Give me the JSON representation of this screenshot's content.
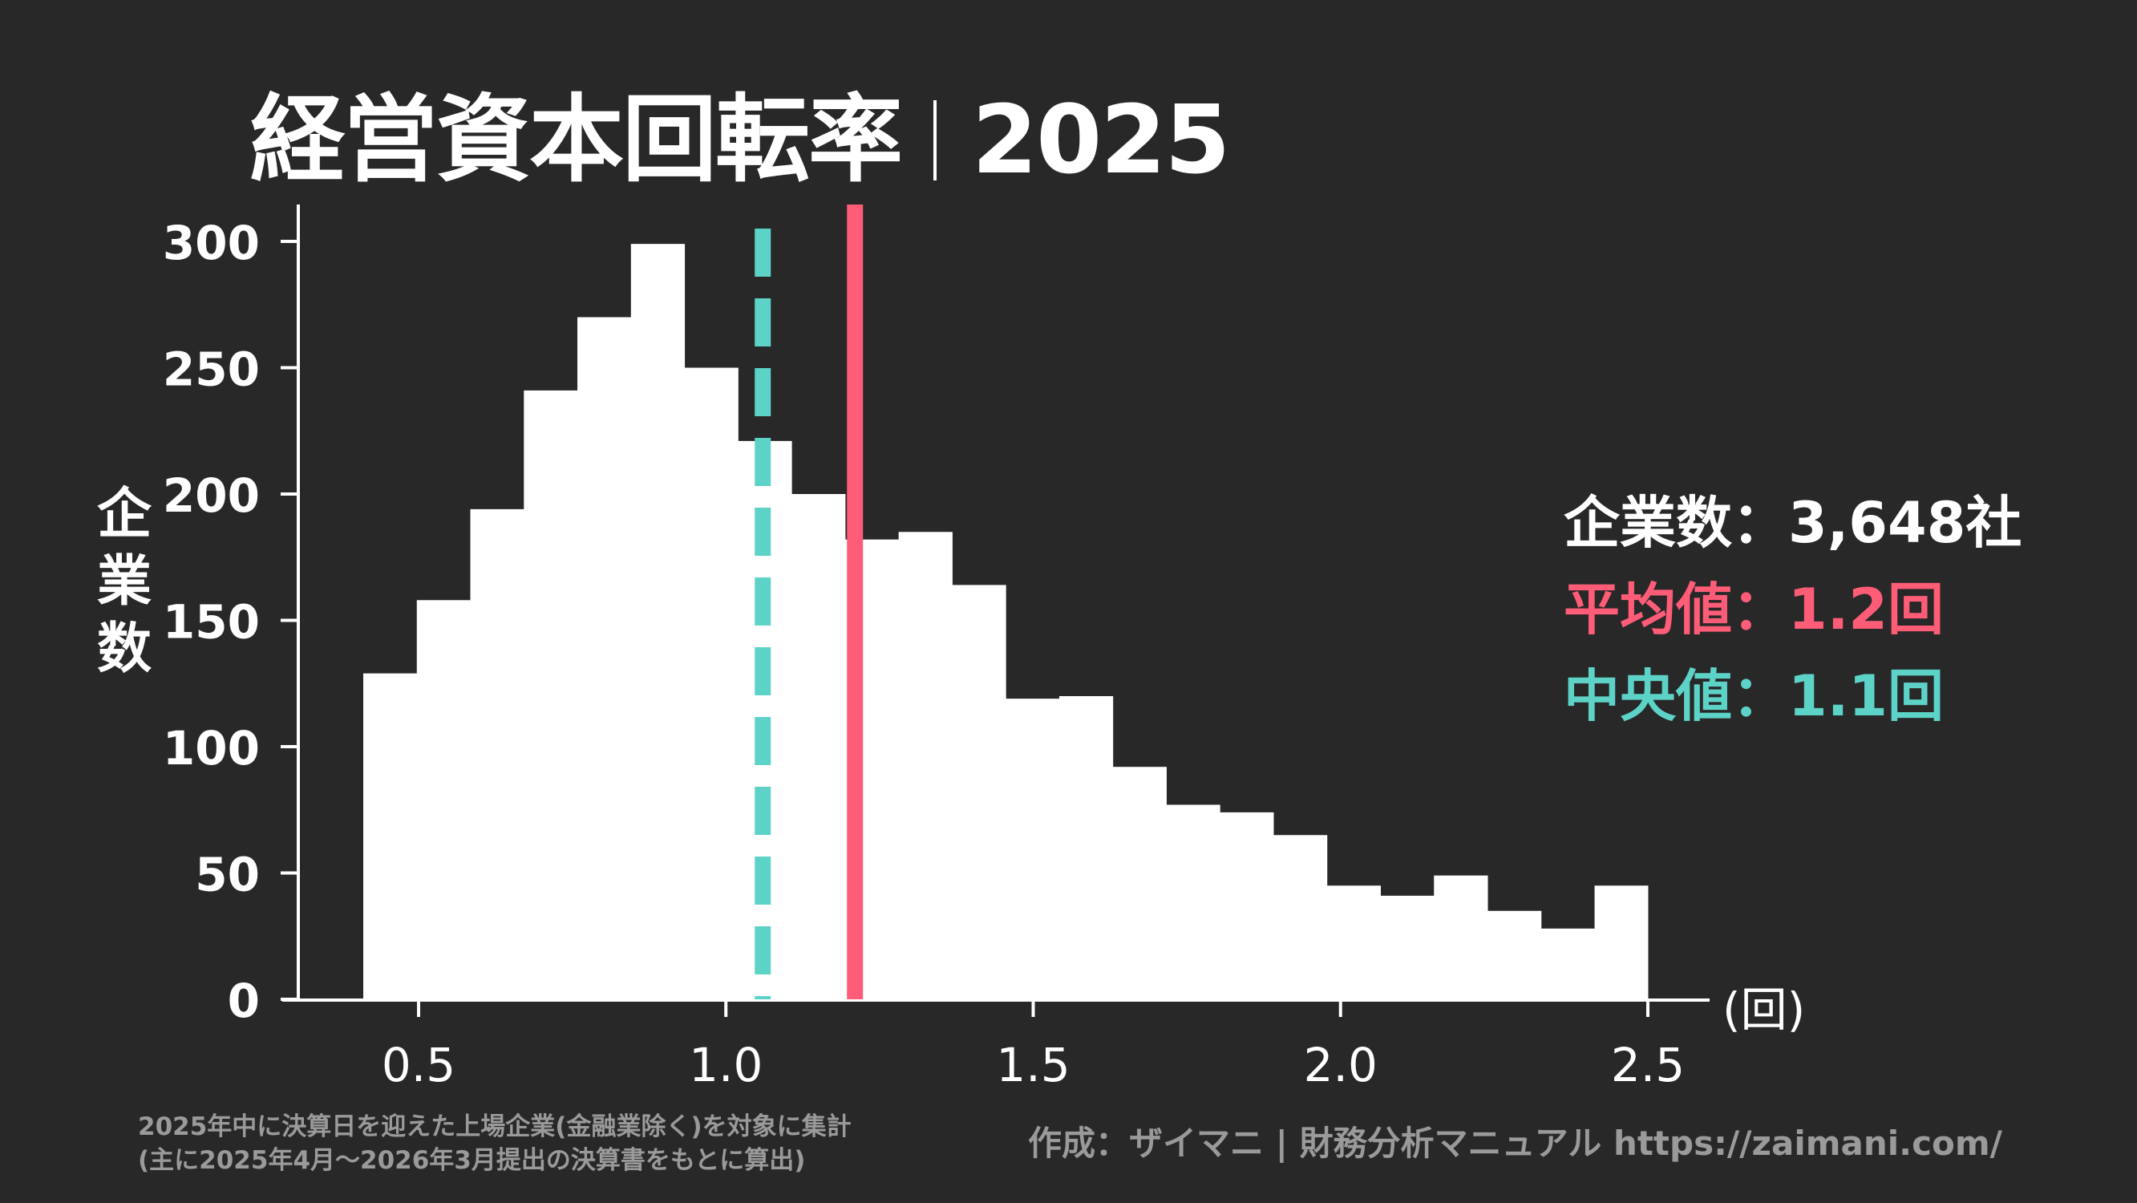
{
  "header": {
    "title_main": "経営資本回転率",
    "title_year": "2025"
  },
  "stats": {
    "count_label": "企業数：3,648社",
    "mean_label": "平均値：1.2回",
    "median_label": "中央値：1.1回",
    "colors": {
      "count": "#ffffff",
      "mean": "#ff5c77",
      "median": "#5dd3c8"
    }
  },
  "footer": {
    "note_line1": "2025年中に決算日を迎えた上場企業(金融業除く)を対象に集計",
    "note_line2": "(主に2025年4月〜2026年3月提出の決算書をもとに算出)",
    "credit": "作成：ザイマニ | 財務分析マニュアル https://zaimani.com/"
  },
  "chart_data": {
    "type": "bar",
    "title": "経営資本回転率｜2025",
    "xlabel": "(回)",
    "ylabel": "企業数",
    "xlim": [
      0.3,
      2.6
    ],
    "ylim": [
      0,
      315
    ],
    "x_ticks": [
      "0.5",
      "1.0",
      "1.5",
      "2.0",
      "2.5"
    ],
    "y_ticks": [
      "0",
      "50",
      "100",
      "150",
      "200",
      "250",
      "300"
    ],
    "grid": false,
    "bin_start": 0.41,
    "bin_end": 2.5,
    "bin_width": 0.0871,
    "categories": [
      "0.41-0.50",
      "0.50-0.58",
      "0.58-0.67",
      "0.67-0.76",
      "0.76-0.85",
      "0.85-0.93",
      "0.93-1.02",
      "1.02-1.11",
      "1.11-1.19",
      "1.19-1.28",
      "1.28-1.37",
      "1.37-1.45",
      "1.45-1.54",
      "1.54-1.63",
      "1.63-1.72",
      "1.72-1.80",
      "1.80-1.89",
      "1.89-1.98",
      "1.98-2.06",
      "2.06-2.15",
      "2.15-2.24",
      "2.24-2.32",
      "2.32-2.41",
      "2.41-2.50"
    ],
    "values": [
      129,
      158,
      194,
      241,
      270,
      299,
      250,
      221,
      200,
      182,
      185,
      164,
      119,
      120,
      92,
      77,
      74,
      65,
      45,
      41,
      49,
      35,
      28,
      45
    ],
    "bar_color": "#ffffff",
    "annotations": {
      "mean": {
        "value": 1.21,
        "label": "平均値：1.2回",
        "color": "#ff5c77",
        "style": "solid"
      },
      "median": {
        "value": 1.06,
        "label": "中央値：1.1回",
        "color": "#5dd3c8",
        "style": "dashed"
      },
      "count": "企業数：3,648社"
    }
  }
}
